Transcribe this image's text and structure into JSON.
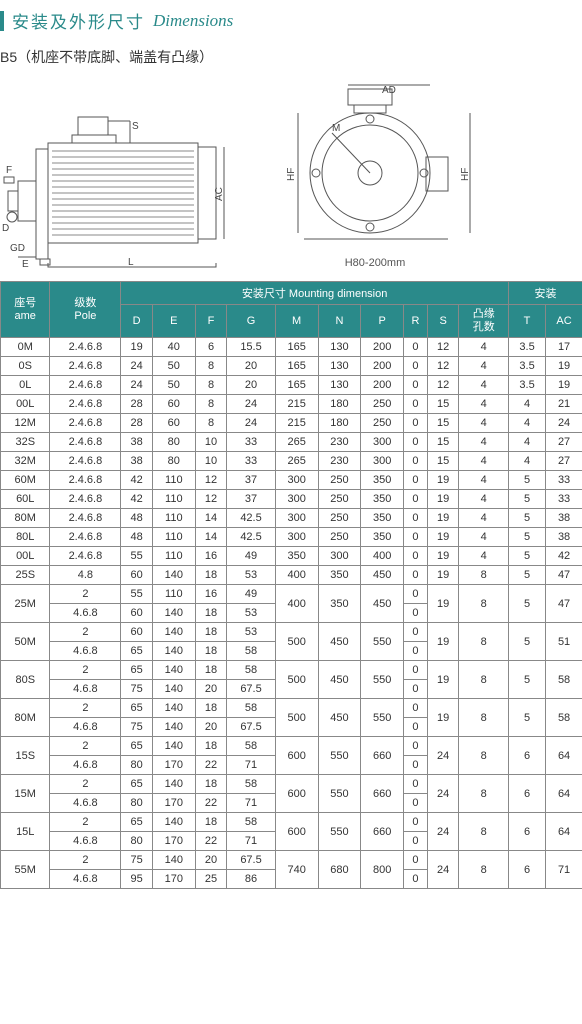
{
  "title_zh": "安装及外形尺寸",
  "title_en": "Dimensions",
  "subtitle": "B5（机座不带底脚、端盖有凸缘）",
  "caption_front": "H80-200mm",
  "header_group_mounting": "安装尺寸 Mounting dimension",
  "header_group_outline_partial": "安装",
  "hdr": {
    "frame_zh": "座号",
    "frame_en": "ame",
    "pole_zh": "级数",
    "pole_en": "Pole",
    "D": "D",
    "E": "E",
    "F": "F",
    "G": "G",
    "M": "M",
    "N": "N",
    "P": "P",
    "R": "R",
    "S": "S",
    "hole_zh": "凸缘",
    "hole_zh2": "孔数",
    "T": "T",
    "AC_partial": "AC"
  },
  "dim_labels": {
    "F": "F",
    "D": "D",
    "E": "E",
    "GD": "GD",
    "L": "L",
    "AC": "AC",
    "S": "S",
    "AD": "AD",
    "M": "M",
    "HF": "HF"
  },
  "rows_simple": [
    {
      "frame": "0M",
      "pole": "2.4.6.8",
      "D": "19",
      "E": "40",
      "F": "6",
      "G": "15.5",
      "M": "165",
      "N": "130",
      "P": "200",
      "R": "0",
      "S": "12",
      "holes": "4",
      "T": "3.5",
      "AC": "17"
    },
    {
      "frame": "0S",
      "pole": "2.4.6.8",
      "D": "24",
      "E": "50",
      "F": "8",
      "G": "20",
      "M": "165",
      "N": "130",
      "P": "200",
      "R": "0",
      "S": "12",
      "holes": "4",
      "T": "3.5",
      "AC": "19"
    },
    {
      "frame": "0L",
      "pole": "2.4.6.8",
      "D": "24",
      "E": "50",
      "F": "8",
      "G": "20",
      "M": "165",
      "N": "130",
      "P": "200",
      "R": "0",
      "S": "12",
      "holes": "4",
      "T": "3.5",
      "AC": "19"
    },
    {
      "frame": "00L",
      "pole": "2.4.6.8",
      "D": "28",
      "E": "60",
      "F": "8",
      "G": "24",
      "M": "215",
      "N": "180",
      "P": "250",
      "R": "0",
      "S": "15",
      "holes": "4",
      "T": "4",
      "AC": "21"
    },
    {
      "frame": "12M",
      "pole": "2.4.6.8",
      "D": "28",
      "E": "60",
      "F": "8",
      "G": "24",
      "M": "215",
      "N": "180",
      "P": "250",
      "R": "0",
      "S": "15",
      "holes": "4",
      "T": "4",
      "AC": "24"
    },
    {
      "frame": "32S",
      "pole": "2.4.6.8",
      "D": "38",
      "E": "80",
      "F": "10",
      "G": "33",
      "M": "265",
      "N": "230",
      "P": "300",
      "R": "0",
      "S": "15",
      "holes": "4",
      "T": "4",
      "AC": "27"
    },
    {
      "frame": "32M",
      "pole": "2.4.6.8",
      "D": "38",
      "E": "80",
      "F": "10",
      "G": "33",
      "M": "265",
      "N": "230",
      "P": "300",
      "R": "0",
      "S": "15",
      "holes": "4",
      "T": "4",
      "AC": "27"
    },
    {
      "frame": "60M",
      "pole": "2.4.6.8",
      "D": "42",
      "E": "110",
      "F": "12",
      "G": "37",
      "M": "300",
      "N": "250",
      "P": "350",
      "R": "0",
      "S": "19",
      "holes": "4",
      "T": "5",
      "AC": "33"
    },
    {
      "frame": "60L",
      "pole": "2.4.6.8",
      "D": "42",
      "E": "110",
      "F": "12",
      "G": "37",
      "M": "300",
      "N": "250",
      "P": "350",
      "R": "0",
      "S": "19",
      "holes": "4",
      "T": "5",
      "AC": "33"
    },
    {
      "frame": "80M",
      "pole": "2.4.6.8",
      "D": "48",
      "E": "110",
      "F": "14",
      "G": "42.5",
      "M": "300",
      "N": "250",
      "P": "350",
      "R": "0",
      "S": "19",
      "holes": "4",
      "T": "5",
      "AC": "38"
    },
    {
      "frame": "80L",
      "pole": "2.4.6.8",
      "D": "48",
      "E": "110",
      "F": "14",
      "G": "42.5",
      "M": "300",
      "N": "250",
      "P": "350",
      "R": "0",
      "S": "19",
      "holes": "4",
      "T": "5",
      "AC": "38"
    },
    {
      "frame": "00L",
      "pole": "2.4.6.8",
      "D": "55",
      "E": "110",
      "F": "16",
      "G": "49",
      "M": "350",
      "N": "300",
      "P": "400",
      "R": "0",
      "S": "19",
      "holes": "4",
      "T": "5",
      "AC": "42"
    },
    {
      "frame": "25S",
      "pole": "4.8",
      "D": "60",
      "E": "140",
      "F": "18",
      "G": "53",
      "M": "400",
      "N": "350",
      "P": "450",
      "R": "0",
      "S": "19",
      "holes": "8",
      "T": "5",
      "AC": "47"
    }
  ],
  "rows_split": [
    {
      "frame": "25M",
      "sub": [
        {
          "pole": "2",
          "D": "55",
          "E": "110",
          "F": "16",
          "G": "49",
          "R": "0"
        },
        {
          "pole": "4.6.8",
          "D": "60",
          "E": "140",
          "F": "18",
          "G": "53",
          "R": "0"
        }
      ],
      "M": "400",
      "N": "350",
      "P": "450",
      "S": "19",
      "holes": "8",
      "T": "5",
      "AC": "47"
    },
    {
      "frame": "50M",
      "sub": [
        {
          "pole": "2",
          "D": "60",
          "E": "140",
          "F": "18",
          "G": "53",
          "R": "0"
        },
        {
          "pole": "4.6.8",
          "D": "65",
          "E": "140",
          "F": "18",
          "G": "58",
          "R": "0"
        }
      ],
      "M": "500",
      "N": "450",
      "P": "550",
      "S": "19",
      "holes": "8",
      "T": "5",
      "AC": "51"
    },
    {
      "frame": "80S",
      "sub": [
        {
          "pole": "2",
          "D": "65",
          "E": "140",
          "F": "18",
          "G": "58",
          "R": "0"
        },
        {
          "pole": "4.6.8",
          "D": "75",
          "E": "140",
          "F": "20",
          "G": "67.5",
          "R": "0"
        }
      ],
      "M": "500",
      "N": "450",
      "P": "550",
      "S": "19",
      "holes": "8",
      "T": "5",
      "AC": "58"
    },
    {
      "frame": "80M",
      "sub": [
        {
          "pole": "2",
          "D": "65",
          "E": "140",
          "F": "18",
          "G": "58",
          "R": "0"
        },
        {
          "pole": "4.6.8",
          "D": "75",
          "E": "140",
          "F": "20",
          "G": "67.5",
          "R": "0"
        }
      ],
      "M": "500",
      "N": "450",
      "P": "550",
      "S": "19",
      "holes": "8",
      "T": "5",
      "AC": "58"
    },
    {
      "frame": "15S",
      "sub": [
        {
          "pole": "2",
          "D": "65",
          "E": "140",
          "F": "18",
          "G": "58",
          "R": "0"
        },
        {
          "pole": "4.6.8",
          "D": "80",
          "E": "170",
          "F": "22",
          "G": "71",
          "R": "0"
        }
      ],
      "M": "600",
      "N": "550",
      "P": "660",
      "S": "24",
      "holes": "8",
      "T": "6",
      "AC": "64"
    },
    {
      "frame": "15M",
      "sub": [
        {
          "pole": "2",
          "D": "65",
          "E": "140",
          "F": "18",
          "G": "58",
          "R": "0"
        },
        {
          "pole": "4.6.8",
          "D": "80",
          "E": "170",
          "F": "22",
          "G": "71",
          "R": "0"
        }
      ],
      "M": "600",
      "N": "550",
      "P": "660",
      "S": "24",
      "holes": "8",
      "T": "6",
      "AC": "64"
    },
    {
      "frame": "15L",
      "sub": [
        {
          "pole": "2",
          "D": "65",
          "E": "140",
          "F": "18",
          "G": "58",
          "R": "0"
        },
        {
          "pole": "4.6.8",
          "D": "80",
          "E": "170",
          "F": "22",
          "G": "71",
          "R": "0"
        }
      ],
      "M": "600",
      "N": "550",
      "P": "660",
      "S": "24",
      "holes": "8",
      "T": "6",
      "AC": "64"
    },
    {
      "frame": "55M",
      "sub": [
        {
          "pole": "2",
          "D": "75",
          "E": "140",
          "F": "20",
          "G": "67.5",
          "R": "0"
        },
        {
          "pole": "4.6.8",
          "D": "95",
          "E": "170",
          "F": "25",
          "G": "86",
          "R": "0"
        }
      ],
      "M": "740",
      "N": "680",
      "P": "800",
      "S": "24",
      "holes": "8",
      "T": "6",
      "AC": "71"
    }
  ]
}
